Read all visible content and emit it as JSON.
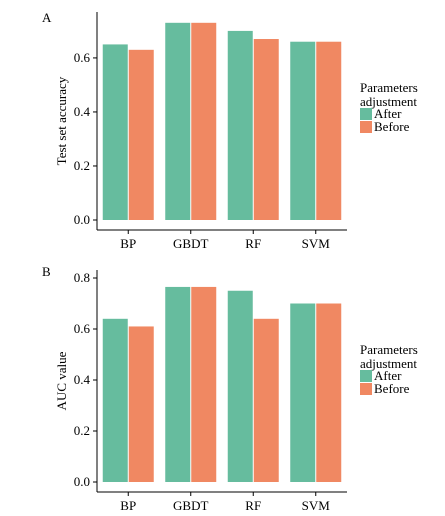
{
  "colors": {
    "after": "#66bc9e",
    "before": "#f08862",
    "axis": "#000000"
  },
  "chart_data": [
    {
      "panel_label": "A",
      "type": "bar",
      "categories": [
        "BP",
        "GBDT",
        "RF",
        "SVM"
      ],
      "series": [
        {
          "name": "After",
          "values": [
            0.65,
            0.73,
            0.7,
            0.66
          ]
        },
        {
          "name": "Before",
          "values": [
            0.63,
            0.73,
            0.67,
            0.66
          ]
        }
      ],
      "xlabel": "",
      "ylabel": "Test set accuracy",
      "ylim": [
        0.0,
        0.77
      ],
      "yticks": [
        0.0,
        0.2,
        0.4,
        0.6
      ],
      "yticklabels": [
        "0.0",
        "0.2",
        "0.4",
        "0.6"
      ],
      "legend": {
        "title_lines": [
          "Parameters",
          "adjustment"
        ],
        "entries": [
          "After",
          "Before"
        ],
        "position": "right"
      }
    },
    {
      "panel_label": "B",
      "type": "bar",
      "categories": [
        "BP",
        "GBDT",
        "RF",
        "SVM"
      ],
      "series": [
        {
          "name": "After",
          "values": [
            0.64,
            0.765,
            0.75,
            0.7
          ]
        },
        {
          "name": "Before",
          "values": [
            0.61,
            0.765,
            0.64,
            0.7
          ]
        }
      ],
      "xlabel": "",
      "ylabel": "AUC value",
      "ylim": [
        0.0,
        0.8
      ],
      "yticks": [
        0.0,
        0.2,
        0.4,
        0.6,
        0.8
      ],
      "yticklabels": [
        "0.0",
        "0.2",
        "0.4",
        "0.6",
        "0.8"
      ],
      "legend": {
        "title_lines": [
          "Parameters",
          "adjustment"
        ],
        "entries": [
          "After",
          "Before"
        ],
        "position": "right"
      }
    }
  ]
}
